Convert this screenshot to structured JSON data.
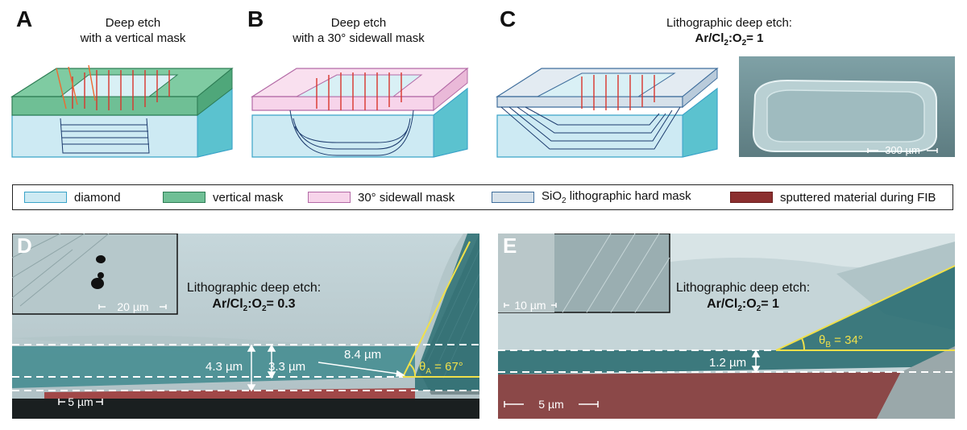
{
  "panels": {
    "A": {
      "letter": "A",
      "title_line1": "Deep etch",
      "title_line2": "with a vertical mask"
    },
    "B": {
      "letter": "B",
      "title_line1": "Deep etch",
      "title_line2": "with a 30° sidewall mask"
    },
    "C": {
      "letter": "C",
      "title_line1": "Lithographic deep etch:",
      "title_line2_main": "Ar/Cl",
      "title_sub1": "2",
      "title_mid": ":O",
      "title_sub2": "2",
      "title_end": "= 1",
      "sem_scale": "300 µm"
    },
    "D": {
      "letter": "D",
      "inset_scale": "20 µm",
      "annot_line1": "Lithographic deep etch:",
      "annot_main": "Ar/Cl",
      "annot_sub1": "2",
      "annot_mid": ":O",
      "annot_sub2": "2",
      "annot_end": "= 0.3",
      "dim_total": "4.3 µm",
      "dim_inner": "3.3 µm",
      "dim_horizontal": "8.4 µm",
      "angle_symbol": "θ",
      "angle_sub": "A",
      "angle_value": " = 67°",
      "scale": "5 µm"
    },
    "E": {
      "letter": "E",
      "inset_scale": "10 µm",
      "annot_line1": "Lithographic deep etch:",
      "annot_main": "Ar/Cl",
      "annot_sub1": "2",
      "annot_mid": ":O",
      "annot_sub2": "2",
      "annot_end": "= 1",
      "dim": "1.2 µm",
      "angle_symbol": "θ",
      "angle_sub": "B",
      "angle_value": " = 34°",
      "scale": "5 µm"
    }
  },
  "legend": [
    {
      "label": "diamond",
      "fill": "#cdeaf3",
      "stroke": "#3aa3c8"
    },
    {
      "label": "vertical mask",
      "fill": "#6fbf95",
      "stroke": "#2e7d55"
    },
    {
      "label": "30° sidewall mask",
      "fill": "#f7d4ea",
      "stroke": "#b36aa6"
    },
    {
      "label_pre": "SiO",
      "label_sub": "2",
      "label_post": " lithographic hard mask",
      "fill": "#d6e1ea",
      "stroke": "#3f6e9c"
    },
    {
      "label": "sputtered material during FIB",
      "fill": "#8b2e2e",
      "stroke": "#6a1f1f"
    }
  ],
  "colors": {
    "diamond": "#cdeaf3",
    "diamond_dark": "#5bc2cf",
    "vertical_mask": "#6fbf95",
    "sidewall_mask": "#f7d4ea",
    "hard_mask": "#d6e1ea",
    "arrow": "#d9342b",
    "arrow_orange": "#ef6a2f",
    "teal_overlay": "#2c6f73",
    "red_overlay": "#8b3a3a",
    "yellow": "#f0e04a"
  }
}
